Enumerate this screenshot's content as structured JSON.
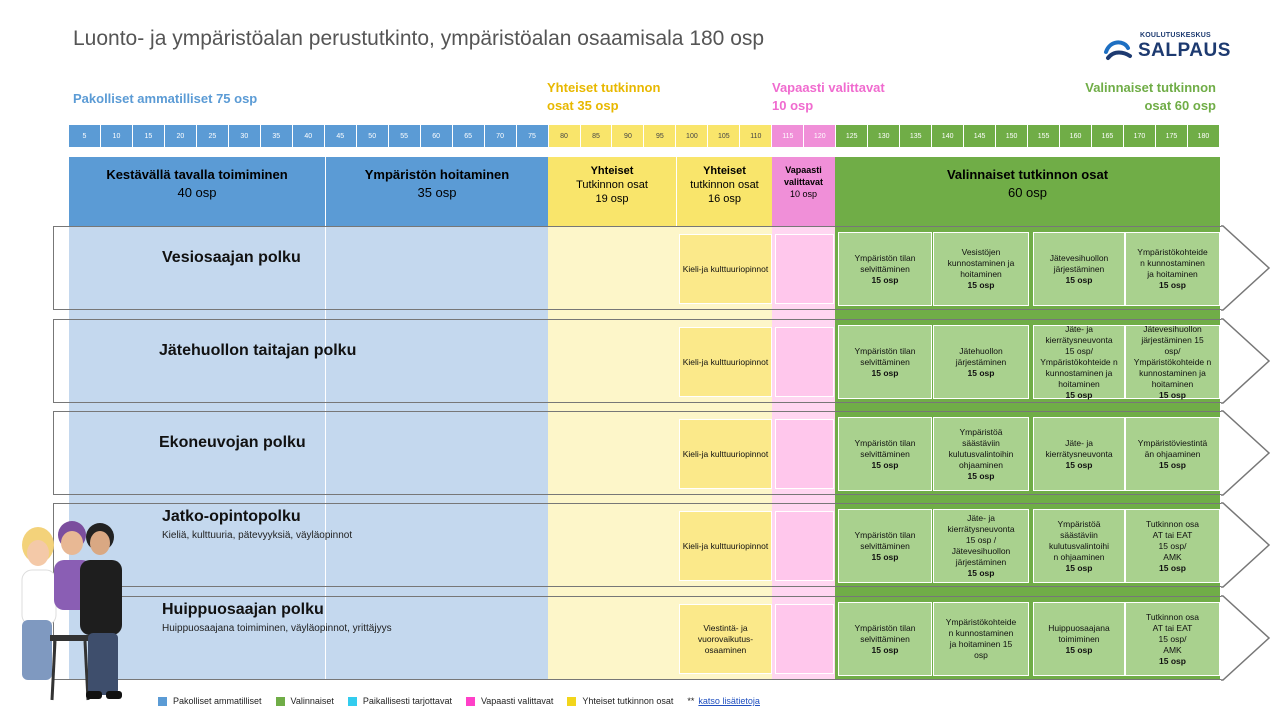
{
  "title": "Luonto- ja ympäristöalan perustutkinto, ympäristöalan osaamisala 180 osp",
  "logo": {
    "small": "KOULUTUSKESKUS",
    "big": "SALPAUS"
  },
  "section_headers": {
    "pakolliset": "Pakolliset ammatilliset 75 osp",
    "yhteiset_line1": "Yhteiset tutkinnon",
    "yhteiset_line2": "osat 35 osp",
    "vapaasti_line1": "Vapaasti valittavat",
    "vapaasti_line2": "10 osp",
    "valinnaiset_line1": "Valinnaiset tutkinnon",
    "valinnaiset_line2": "osat 60 osp"
  },
  "ticks": [
    "5",
    "10",
    "15",
    "20",
    "25",
    "30",
    "35",
    "40",
    "45",
    "50",
    "55",
    "60",
    "65",
    "70",
    "75",
    "80",
    "85",
    "90",
    "95",
    "100",
    "105",
    "110",
    "115",
    "120",
    "125",
    "130",
    "135",
    "140",
    "145",
    "150",
    "155",
    "160",
    "165",
    "170",
    "175",
    "180"
  ],
  "columns": {
    "c1": {
      "name": "Kestävällä tavalla toimiminen",
      "osp": "40 osp"
    },
    "c2": {
      "name": "Ympäristön hoitaminen",
      "osp": "35 osp"
    },
    "c3": {
      "line1": "Yhteiset",
      "line2": "Tutkinnon osat",
      "osp": "19 osp"
    },
    "c4": {
      "line1": "Yhteiset",
      "line2": "tutkinnon osat",
      "osp": "16 osp"
    },
    "c5": {
      "line1": "Vapaasti",
      "line2": "valittavat",
      "osp": "10 osp"
    },
    "c6": {
      "name": "Valinnaiset tutkinnon osat",
      "osp": "60 osp"
    }
  },
  "rows": [
    {
      "title": "Vesiosaajan polku",
      "subtitle": "",
      "yellow": "Kieli-ja kulttuuriopinnot",
      "green": [
        {
          "l1": "Ympäristön tilan",
          "l2": "selvittäminen",
          "l3": "",
          "l4": "",
          "osp": "15 osp"
        },
        {
          "l1": "Vesistöjen",
          "l2": "kunnostaminen ja",
          "l3": "hoitaminen",
          "l4": "",
          "osp": "15 osp"
        },
        {
          "l1": "Jätevesihuollon",
          "l2": "järjestäminen",
          "l3": "",
          "l4": "",
          "osp": "15 osp"
        },
        {
          "l1": "Ympäristökohteide",
          "l2": "n kunnostaminen",
          "l3": "ja hoitaminen",
          "l4": "",
          "osp": "15 osp"
        }
      ]
    },
    {
      "title": "Jätehuollon taitajan polku",
      "subtitle": "",
      "yellow": "Kieli-ja kulttuuriopinnot",
      "green": [
        {
          "l1": "Ympäristön tilan",
          "l2": "selvittäminen",
          "l3": "",
          "l4": "",
          "osp": "15 osp"
        },
        {
          "l1": "Jätehuollon",
          "l2": "järjestäminen",
          "l3": "",
          "l4": "",
          "osp": "15 osp"
        },
        {
          "l1": "Jäte- ja",
          "l2": "kierrätysneuvonta",
          "l3": "15 osp/",
          "l4": "Ympäristökohteide n kunnostaminen ja hoitaminen",
          "osp": "15 osp"
        },
        {
          "l1": "Jätevesihuollon",
          "l2": "järjestäminen 15",
          "l3": "osp/",
          "l4": "Ympäristökohteide n kunnostaminen ja hoitaminen",
          "osp": "15 osp"
        }
      ]
    },
    {
      "title": "Ekoneuvojan polku",
      "subtitle": "",
      "yellow": "Kieli-ja kulttuuriopinnot",
      "green": [
        {
          "l1": "Ympäristön tilan",
          "l2": "selvittäminen",
          "l3": "",
          "l4": "",
          "osp": "15 osp"
        },
        {
          "l1": "Ympäristöä",
          "l2": "säästäviin",
          "l3": "kulutusvalintoihin",
          "l4": "ohjaaminen",
          "osp": "15 osp"
        },
        {
          "l1": "Jäte- ja",
          "l2": "kierrätysneuvonta",
          "l3": "",
          "l4": "",
          "osp": "15 osp"
        },
        {
          "l1": "Ympäristöviestintä",
          "l2": "än ohjaaminen",
          "l3": "",
          "l4": "",
          "osp": "15 osp"
        }
      ]
    },
    {
      "title": "Jatko-opintopolku",
      "subtitle": "Kieliä, kulttuuria, pätevyyksiä, väyläopinnot",
      "yellow": "Kieli-ja kulttuuriopinnot",
      "green": [
        {
          "l1": "Ympäristön tilan",
          "l2": "selvittäminen",
          "l3": "",
          "l4": "",
          "osp": "15 osp"
        },
        {
          "l1": "Jäte- ja",
          "l2": "kierrätysneuvonta",
          "l3": "15 osp /",
          "l4": "Jätevesihuollon järjestäminen",
          "osp": "15 osp"
        },
        {
          "l1": "Ympäristöä",
          "l2": "säästäviin",
          "l3": "kulutusvalintoihi",
          "l4": "n ohjaaminen",
          "osp": "15 osp"
        },
        {
          "l1": "Tutkinnon osa",
          "l2": "AT tai EAT",
          "l3": "15 osp/",
          "l4": "AMK",
          "osp": "15 osp"
        }
      ]
    },
    {
      "title": "Huippuosaajan polku",
      "subtitle": "Huippuosaajana toimiminen, väyläopinnot, yrittäjyys",
      "yellow": "Viestintä- ja vuorovaikutus-osaaminen",
      "green": [
        {
          "l1": "Ympäristön tilan",
          "l2": "selvittäminen",
          "l3": "",
          "l4": "",
          "osp": "15 osp"
        },
        {
          "l1": "Ympäristökohteide",
          "l2": "n kunnostaminen",
          "l3": "ja hoitaminen 15",
          "l4": "osp",
          "osp": ""
        },
        {
          "l1": "Huippuosaajana",
          "l2": "toimiminen",
          "l3": "",
          "l4": "",
          "osp": "15 osp"
        },
        {
          "l1": "Tutkinnon osa",
          "l2": "AT tai EAT",
          "l3": "15 osp/",
          "l4": "AMK",
          "osp": "15 osp"
        }
      ]
    }
  ],
  "legend": [
    {
      "label": "Pakolliset ammatilliset",
      "color": "#5b9bd5"
    },
    {
      "label": "Valinnaiset",
      "color": "#70ad47"
    },
    {
      "label": "Paikallisesti tarjottavat",
      "color": "#33ccee"
    },
    {
      "label": "Vapaasti valittavat",
      "color": "#ff40c8"
    },
    {
      "label": "Yhteiset tutkinnon osat",
      "color": "#f2d51c"
    }
  ],
  "legend_link_prefix": "**",
  "legend_link": "katso lisätietoja",
  "colors": {
    "blue": "#5b9bd5",
    "light_blue": "#c4d8ee",
    "yellow": "#f9e56b",
    "light_yellow": "#fdf6c9",
    "pink": "#f08fd8",
    "light_pink": "#ffd6f1",
    "green": "#70ad47",
    "light_green": "#a9d18e"
  }
}
